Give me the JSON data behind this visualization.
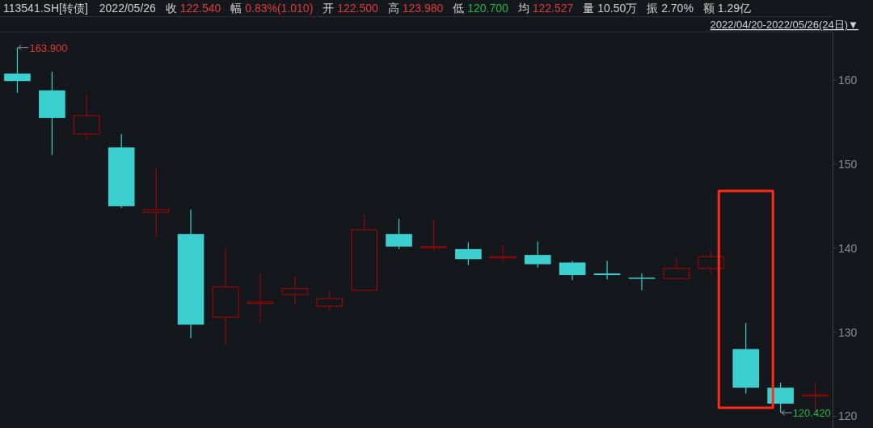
{
  "chart_data": {
    "type": "candlestick",
    "title": "113541.SH[转债]",
    "subtitle": "2022/04/20-2022/05/26(24日)▼",
    "annotations": [
      "2022/05/26",
      "收 122.540",
      "幅 0.83%(1.010)",
      "开 122.500",
      "高 123.980",
      "低 120.700",
      "均 122.527",
      "量 10.50万",
      "振 2.70%",
      "额 1.29亿",
      "163.900",
      "120.420"
    ],
    "categories": [
      null,
      null,
      null,
      null,
      null,
      null,
      null,
      null,
      null,
      null,
      null,
      null,
      null,
      null,
      null,
      null,
      null,
      null,
      null,
      null,
      null,
      null,
      null,
      null
    ],
    "ohlc": [
      [
        160.8,
        163.9,
        158.5,
        159.9
      ],
      [
        158.8,
        161.0,
        151.1,
        155.5
      ],
      [
        153.6,
        158.3,
        152.9,
        155.8
      ],
      [
        152.0,
        153.6,
        144.8,
        145.0
      ],
      [
        144.3,
        149.5,
        141.3,
        144.6
      ],
      [
        141.7,
        144.6,
        129.3,
        130.9
      ],
      [
        131.8,
        140.0,
        128.5,
        135.4
      ],
      [
        133.4,
        137.0,
        131.2,
        133.6
      ],
      [
        134.5,
        136.7,
        133.3,
        135.2
      ],
      [
        133.1,
        134.9,
        132.6,
        134.0
      ],
      [
        135.0,
        144.0,
        135.0,
        142.2
      ],
      [
        141.7,
        143.5,
        139.9,
        140.2
      ],
      [
        140.1,
        143.4,
        139.7,
        140.2
      ],
      [
        139.9,
        140.7,
        138.0,
        138.7
      ],
      [
        138.9,
        140.4,
        138.3,
        139.0
      ],
      [
        139.2,
        140.8,
        137.7,
        138.1
      ],
      [
        138.3,
        138.5,
        136.2,
        136.8
      ],
      [
        137.0,
        138.5,
        136.3,
        136.8
      ],
      [
        136.5,
        137.0,
        135.0,
        136.4
      ],
      [
        136.4,
        138.8,
        136.4,
        137.6
      ],
      [
        137.6,
        139.6,
        136.9,
        139.0
      ],
      [
        128.0,
        131.1,
        122.7,
        123.4
      ],
      [
        123.4,
        124.0,
        120.42,
        121.5
      ],
      [
        122.5,
        123.98,
        120.7,
        122.54
      ]
    ],
    "colors": [
      "#3ccfcf",
      "#3ccfcf",
      "#8b0a0a",
      "#3ccfcf",
      "#8b0a0a",
      "#3ccfcf",
      "#8b0a0a",
      "#8b0a0a",
      "#8b0a0a",
      "#8b0a0a",
      "#8b0a0a",
      "#3ccfcf",
      "#8b0a0a",
      "#3ccfcf",
      "#8b0a0a",
      "#3ccfcf",
      "#3ccfcf",
      "#3ccfcf",
      "#3ccfcf",
      "#8b0a0a",
      "#8b0a0a",
      "#3ccfcf",
      "#3ccfcf",
      "#8b0a0a"
    ],
    "ylim": [
      118.6,
      165.7
    ],
    "yticks": [
      120,
      130,
      140,
      150,
      160
    ]
  }
}
